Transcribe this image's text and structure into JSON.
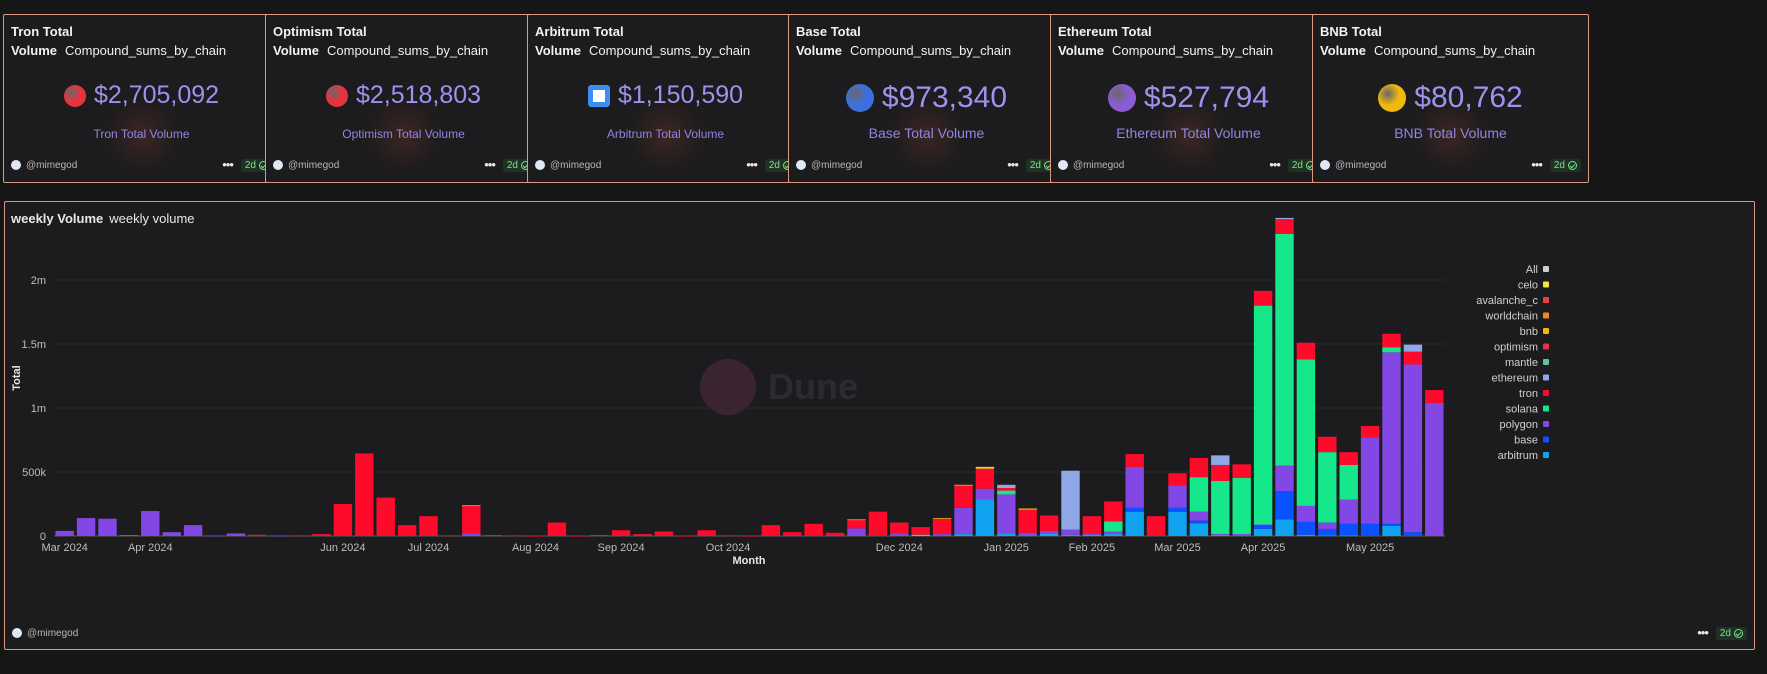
{
  "cards": [
    {
      "title": "Tron Total",
      "sub_bold": "Volume",
      "sub": "Compound_sums_by_chain",
      "value": "$2,705,092",
      "label": "Tron Total Volume",
      "coin": "tron-coin-icon",
      "coin_color": "#e8323f",
      "author": "@mimegod",
      "age": "2d"
    },
    {
      "title": "Optimism Total",
      "sub_bold": "Volume",
      "sub": "Compound_sums_by_chain",
      "value": "$2,518,803",
      "label": "Optimism Total Volume",
      "coin": "optimism-coin-icon",
      "coin_color": "#e8323f",
      "author": "@mimegod",
      "age": "2d"
    },
    {
      "title": "Arbitrum Total",
      "sub_bold": "Volume",
      "sub": "Compound_sums_by_chain",
      "value": "$1,150,590",
      "label": "Arbitrum Total Volume",
      "coin": "arbitrum-coin-icon",
      "coin_color": "#3b8ff0",
      "author": "@mimegod",
      "age": "2d"
    },
    {
      "title": "Base Total",
      "sub_bold": "Volume",
      "sub": "Compound_sums_by_chain",
      "value": "$973,340",
      "label": "Base Total Volume",
      "coin": "base-coin-icon",
      "coin_color": "#3d6fe0",
      "author": "@mimegod",
      "age": "2d"
    },
    {
      "title": "Ethereum Total",
      "sub_bold": "Volume",
      "sub": "Compound_sums_by_chain",
      "value": "$527,794",
      "label": "Ethereum Total Volume",
      "coin": "ethereum-coin-icon",
      "coin_color": "#8b5cd6",
      "author": "@mimegod",
      "age": "2d"
    },
    {
      "title": "BNB Total",
      "sub_bold": "Volume",
      "sub": "Compound_sums_by_chain",
      "value": "$80,762",
      "label": "BNB Total Volume",
      "coin": "bnb-coin-icon",
      "coin_color": "#f0b90b",
      "author": "@mimegod",
      "age": "2d"
    }
  ],
  "chart": {
    "title_bold": "weekly Volume",
    "title": "weekly volume",
    "author": "@mimegod",
    "age": "2d",
    "watermark": "Dune"
  },
  "chart_data": {
    "type": "bar",
    "stacked": true,
    "xlabel": "Month",
    "ylabel": "Total",
    "ylim": [
      0,
      2500000
    ],
    "y_ticks": [
      0,
      500000,
      1000000,
      1500000,
      2000000
    ],
    "y_tick_labels": [
      "0",
      "500k",
      "1m",
      "1.5m",
      "2m"
    ],
    "x_month_labels": [
      {
        "label": "Mar 2024",
        "week": 0
      },
      {
        "label": "Apr 2024",
        "week": 4
      },
      {
        "label": "Jun 2024",
        "week": 13
      },
      {
        "label": "Jul 2024",
        "week": 17
      },
      {
        "label": "Aug 2024",
        "week": 22
      },
      {
        "label": "Sep 2024",
        "week": 26
      },
      {
        "label": "Oct 2024",
        "week": 31
      },
      {
        "label": "Dec 2024",
        "week": 39
      },
      {
        "label": "Jan 2025",
        "week": 44
      },
      {
        "label": "Feb 2025",
        "week": 48
      },
      {
        "label": "Mar 2025",
        "week": 52
      },
      {
        "label": "Apr 2025",
        "week": 56
      },
      {
        "label": "May 2025",
        "week": 61
      }
    ],
    "grid": true,
    "legend_position": "right",
    "legend": [
      "All",
      "celo",
      "avalanche_c",
      "worldchain",
      "bnb",
      "optimism",
      "mantle",
      "ethereum",
      "tron",
      "solana",
      "polygon",
      "base",
      "arbitrum"
    ],
    "series_colors": {
      "All": "#d0d0d0",
      "celo": "#f5e342",
      "avalanche_c": "#e84142",
      "worldchain": "#ee8a1f",
      "bnb": "#f0b90b",
      "optimism": "#e8323f",
      "mantle": "#5ec2a0",
      "ethereum": "#8ea8e8",
      "tron": "#ff0a2a",
      "solana": "#14e88a",
      "polygon": "#8247e5",
      "base": "#0a52ff",
      "arbitrum": "#12a3f0"
    },
    "stack_order": [
      "arbitrum",
      "base",
      "polygon",
      "solana",
      "tron",
      "ethereum",
      "mantle",
      "optimism",
      "bnb",
      "worldchain",
      "avalanche_c",
      "celo"
    ],
    "weeks": [
      {
        "polygon": 40000
      },
      {
        "polygon": 140000
      },
      {
        "polygon": 135000
      },
      {
        "polygon": 8000
      },
      {
        "polygon": 195000
      },
      {
        "polygon": 30000
      },
      {
        "polygon": 85000
      },
      {
        "polygon": 3000
      },
      {
        "polygon": 20000
      },
      {
        "tron": 10000
      },
      {
        "polygon": 3000
      },
      {
        "tron": 5000
      },
      {
        "tron": 15000
      },
      {
        "tron": 250000
      },
      {
        "tron": 645000
      },
      {
        "tron": 300000
      },
      {
        "tron": 85000
      },
      {
        "tron": 155000
      },
      {
        "tron": 5000
      },
      {
        "polygon": 20000,
        "tron": 215000,
        "bnb": 5000
      },
      {
        "tron": 8000
      },
      {
        "tron": 5000
      },
      {
        "tron": 3000
      },
      {
        "tron": 105000
      },
      {
        "tron": 3000
      },
      {
        "tron": 8000
      },
      {
        "tron": 45000
      },
      {
        "tron": 15000
      },
      {
        "tron": 35000
      },
      {
        "tron": 3000
      },
      {
        "tron": 45000
      },
      {
        "tron": 5000
      },
      {
        "tron": 3000
      },
      {
        "tron": 85000
      },
      {
        "polygon": 5000,
        "tron": 25000
      },
      {
        "tron": 95000
      },
      {
        "polygon": 5000,
        "tron": 20000
      },
      {
        "polygon": 60000,
        "tron": 65000,
        "bnb": 5000
      },
      {
        "tron": 190000
      },
      {
        "polygon": 20000,
        "tron": 85000
      },
      {
        "solana": 10000,
        "tron": 60000
      },
      {
        "polygon": 15000,
        "tron": 120000,
        "bnb": 5000
      },
      {
        "arbitrum": 15000,
        "polygon": 205000,
        "tron": 175000,
        "bnb": 5000
      },
      {
        "arbitrum": 285000,
        "polygon": 85000,
        "tron": 155000,
        "bnb": 10000,
        "celo": 5000
      },
      {
        "arbitrum": 20000,
        "polygon": 305000,
        "solana": 30000,
        "ethereum": 25000,
        "tron": 20000
      },
      {
        "arbitrum": 5000,
        "polygon": 20000,
        "tron": 180000,
        "bnb": 10000
      },
      {
        "arbitrum": 20000,
        "polygon": 20000,
        "tron": 120000
      },
      {
        "arbitrum": 10000,
        "polygon": 40000,
        "ethereum": 460000
      },
      {
        "arbitrum": 10000,
        "polygon": 10000,
        "tron": 135000
      },
      {
        "arbitrum": 15000,
        "polygon": 20000,
        "solana": 80000,
        "tron": 155000
      },
      {
        "arbitrum": 190000,
        "base": 30000,
        "polygon": 320000,
        "tron": 100000
      },
      {
        "tron": 155000
      },
      {
        "arbitrum": 190000,
        "base": 30000,
        "polygon": 175000,
        "tron": 95000
      },
      {
        "arbitrum": 100000,
        "base": 20000,
        "polygon": 70000,
        "solana": 270000,
        "tron": 150000
      },
      {
        "arbitrum": 10000,
        "polygon": 5000,
        "solana": 415000,
        "tron": 125000,
        "ethereum": 75000
      },
      {
        "arbitrum": 5000,
        "polygon": 10000,
        "solana": 440000,
        "tron": 105000
      },
      {
        "arbitrum": 55000,
        "base": 30000,
        "polygon": 5000,
        "solana": 1710000,
        "tron": 115000
      },
      {
        "arbitrum": 130000,
        "base": 220000,
        "polygon": 200000,
        "solana": 1810000,
        "tron": 115000,
        "ethereum": 10000
      },
      {
        "arbitrum": 10000,
        "base": 100000,
        "polygon": 125000,
        "solana": 1145000,
        "tron": 130000
      },
      {
        "arbitrum": 5000,
        "base": 50000,
        "polygon": 50000,
        "solana": 550000,
        "tron": 120000
      },
      {
        "arbitrum": 5000,
        "base": 90000,
        "polygon": 190000,
        "solana": 270000,
        "tron": 100000
      },
      {
        "base": 95000,
        "polygon": 675000,
        "tron": 90000
      },
      {
        "arbitrum": 80000,
        "base": 15000,
        "polygon": 1340000,
        "solana": 40000,
        "tron": 105000
      },
      {
        "base": 30000,
        "polygon": 1310000,
        "tron": 100000,
        "ethereum": 55000
      },
      {
        "polygon": 1040000,
        "tron": 100000
      }
    ]
  }
}
